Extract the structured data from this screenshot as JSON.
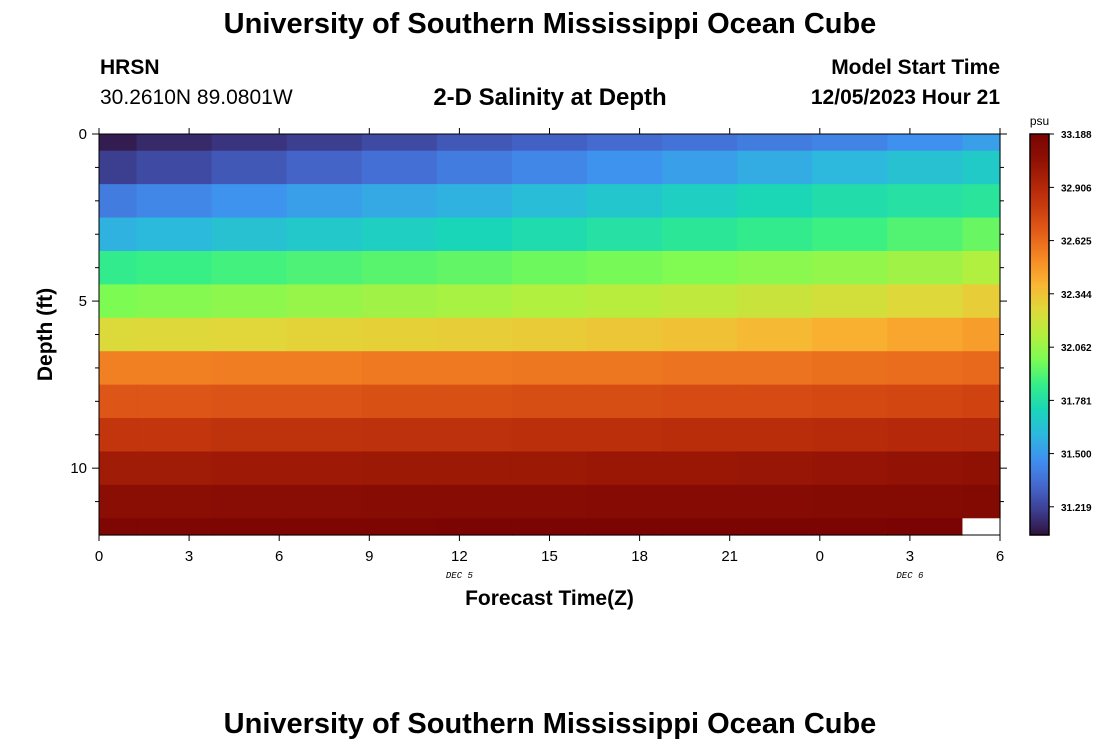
{
  "header": {
    "title": "University of Southern Mississippi Ocean Cube",
    "station": "HRSN",
    "coords": "30.2610N  89.0801W",
    "subtitle": "2-D Salinity at Depth",
    "model_label": "Model Start Time",
    "model_date": "12/05/2023 Hour 21"
  },
  "footer": {
    "title": "University of Southern Mississippi Ocean Cube"
  },
  "colors": {
    "palette": [
      "#30123b",
      "#3c3f92",
      "#4569cf",
      "#3f8fef",
      "#2db8de",
      "#1ad6b8",
      "#35ee88",
      "#7bfb54",
      "#b5ef3e",
      "#dfd83a",
      "#f9b533",
      "#f58b25",
      "#e5601a",
      "#cc3e0f",
      "#b02509",
      "#8e1004",
      "#7a0403"
    ],
    "missing": "#ffffff"
  },
  "chart_data": {
    "type": "heatmap",
    "title": "2-D Salinity at Depth",
    "xlabel": "Forecast Time(Z)",
    "ylabel": "Depth (ft)",
    "x_tick_labels": [
      "0",
      "3",
      "6",
      "9",
      "12",
      "15",
      "18",
      "21",
      "0",
      "3",
      "6"
    ],
    "x_tick_hours": [
      0,
      3,
      6,
      9,
      12,
      15,
      18,
      21,
      24,
      27,
      30
    ],
    "x_date_labels": [
      {
        "label": "DEC 5",
        "hour": 12
      },
      {
        "label": "DEC 6",
        "hour": 27
      }
    ],
    "xlim": [
      0,
      30
    ],
    "y_tick_labels": [
      "0",
      "5",
      "10"
    ],
    "y_tick_values": [
      0,
      5,
      10
    ],
    "y_minor_values": [
      1,
      2,
      3,
      4,
      6,
      7,
      8,
      9,
      11
    ],
    "ylim": [
      0,
      12
    ],
    "time_edges": [
      0,
      1.25,
      3.75,
      6.25,
      8.75,
      11.25,
      13.75,
      16.25,
      18.75,
      21.25,
      23.75,
      26.25,
      28.75,
      30
    ],
    "depth_edges": [
      0,
      0.5,
      1.5,
      2.5,
      3.5,
      4.5,
      5.5,
      6.5,
      7.5,
      8.5,
      9.5,
      10.5,
      11.5,
      12
    ],
    "values": [
      [
        31.1,
        31.14,
        31.17,
        31.2,
        31.24,
        31.28,
        31.31,
        31.34,
        31.37,
        31.4,
        31.43,
        31.47,
        31.52
      ],
      [
        31.2,
        31.24,
        31.28,
        31.32,
        31.36,
        31.4,
        31.44,
        31.48,
        31.52,
        31.56,
        31.6,
        31.64,
        31.68
      ],
      [
        31.4,
        31.44,
        31.48,
        31.52,
        31.55,
        31.58,
        31.62,
        31.66,
        31.7,
        31.74,
        31.77,
        31.79,
        31.81
      ],
      [
        31.58,
        31.61,
        31.64,
        31.67,
        31.7,
        31.73,
        31.76,
        31.79,
        31.82,
        31.85,
        31.88,
        31.92,
        31.96
      ],
      [
        31.85,
        31.87,
        31.89,
        31.91,
        31.93,
        31.95,
        31.97,
        31.99,
        32.01,
        32.03,
        32.05,
        32.08,
        32.12
      ],
      [
        32.0,
        32.02,
        32.04,
        32.06,
        32.08,
        32.1,
        32.12,
        32.14,
        32.16,
        32.19,
        32.22,
        32.26,
        32.3
      ],
      [
        32.25,
        32.26,
        32.27,
        32.28,
        32.29,
        32.3,
        32.31,
        32.33,
        32.35,
        32.38,
        32.41,
        32.44,
        32.47
      ],
      [
        32.56,
        32.56,
        32.57,
        32.57,
        32.58,
        32.58,
        32.59,
        32.59,
        32.6,
        32.6,
        32.61,
        32.62,
        32.63
      ],
      [
        32.7,
        32.7,
        32.71,
        32.71,
        32.72,
        32.72,
        32.73,
        32.73,
        32.74,
        32.74,
        32.75,
        32.76,
        32.77
      ],
      [
        32.84,
        32.84,
        32.85,
        32.85,
        32.86,
        32.86,
        32.87,
        32.87,
        32.88,
        32.88,
        32.89,
        32.9,
        32.91
      ],
      [
        32.98,
        32.98,
        32.99,
        32.99,
        33.0,
        33.0,
        33.0,
        33.01,
        33.01,
        33.02,
        33.03,
        33.04,
        33.05
      ],
      [
        33.08,
        33.08,
        33.09,
        33.09,
        33.1,
        33.1,
        33.1,
        33.11,
        33.11,
        33.11,
        33.12,
        33.12,
        33.13
      ],
      [
        33.16,
        33.16,
        33.17,
        33.17,
        33.17,
        33.18,
        33.18,
        33.18,
        33.18,
        33.18,
        33.18,
        33.19,
        null
      ]
    ],
    "colorbar": {
      "unit": "psu",
      "min": 31.07,
      "max": 33.188,
      "tick_labels": [
        "33.188",
        "32.906",
        "32.625",
        "32.344",
        "32.062",
        "31.781",
        "31.500",
        "31.219"
      ],
      "tick_values": [
        33.188,
        32.906,
        32.625,
        32.344,
        32.062,
        31.781,
        31.5,
        31.219
      ]
    }
  }
}
